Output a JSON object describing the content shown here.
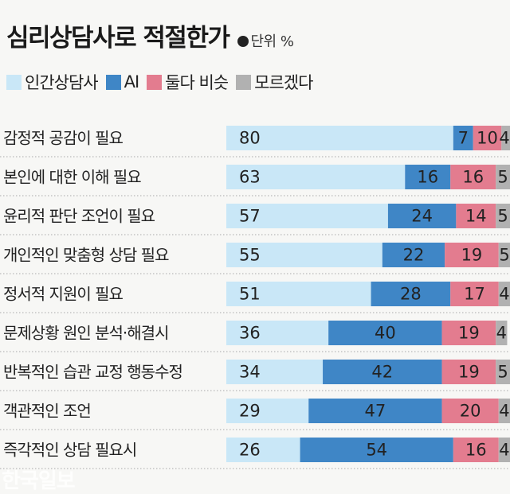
{
  "title": "심리상담사로 적절한가",
  "unit_label": "단위 %",
  "watermark": "한국일보",
  "colors": {
    "human": "#c9e7f7",
    "ai": "#3f86c6",
    "both": "#e37c8f",
    "unknown": "#b1b1b1",
    "separator": "#aaaaaa"
  },
  "legend": [
    {
      "key": "human",
      "label": "인간상담사",
      "color": "#c9e7f7"
    },
    {
      "key": "ai",
      "label": "AI",
      "color": "#3f86c6"
    },
    {
      "key": "both",
      "label": "둘다 비슷",
      "color": "#e37c8f"
    },
    {
      "key": "unknown",
      "label": "모르겠다",
      "color": "#b1b1b1"
    }
  ],
  "chart_data": {
    "type": "bar",
    "orientation": "horizontal",
    "stacked": true,
    "normalized_to": 100,
    "title": "심리상담사로 적절한가",
    "unit": "%",
    "categories": [
      "감정적 공감이 필요",
      "본인에 대한 이해 필요",
      "윤리적 판단 조언이 필요",
      "개인적인 맞춤형 상담 필요",
      "정서적 지원이 필요",
      "문제상황 원인 분석·해결시",
      "반복적인 습관 교정 행동수정",
      "객관적인 조언",
      "즉각적인 상담 필요시"
    ],
    "series": [
      {
        "name": "인간상담사",
        "key": "human",
        "values": [
          80,
          63,
          57,
          55,
          51,
          36,
          34,
          29,
          26
        ]
      },
      {
        "name": "AI",
        "key": "ai",
        "values": [
          7,
          16,
          24,
          22,
          28,
          40,
          42,
          47,
          54
        ]
      },
      {
        "name": "둘다 비슷",
        "key": "both",
        "values": [
          10,
          16,
          14,
          19,
          17,
          19,
          19,
          20,
          16
        ]
      },
      {
        "name": "모르겠다",
        "key": "unknown",
        "values": [
          4,
          5,
          5,
          5,
          4,
          4,
          5,
          4,
          4
        ]
      }
    ],
    "legend_position": "top-left",
    "grid": false
  }
}
